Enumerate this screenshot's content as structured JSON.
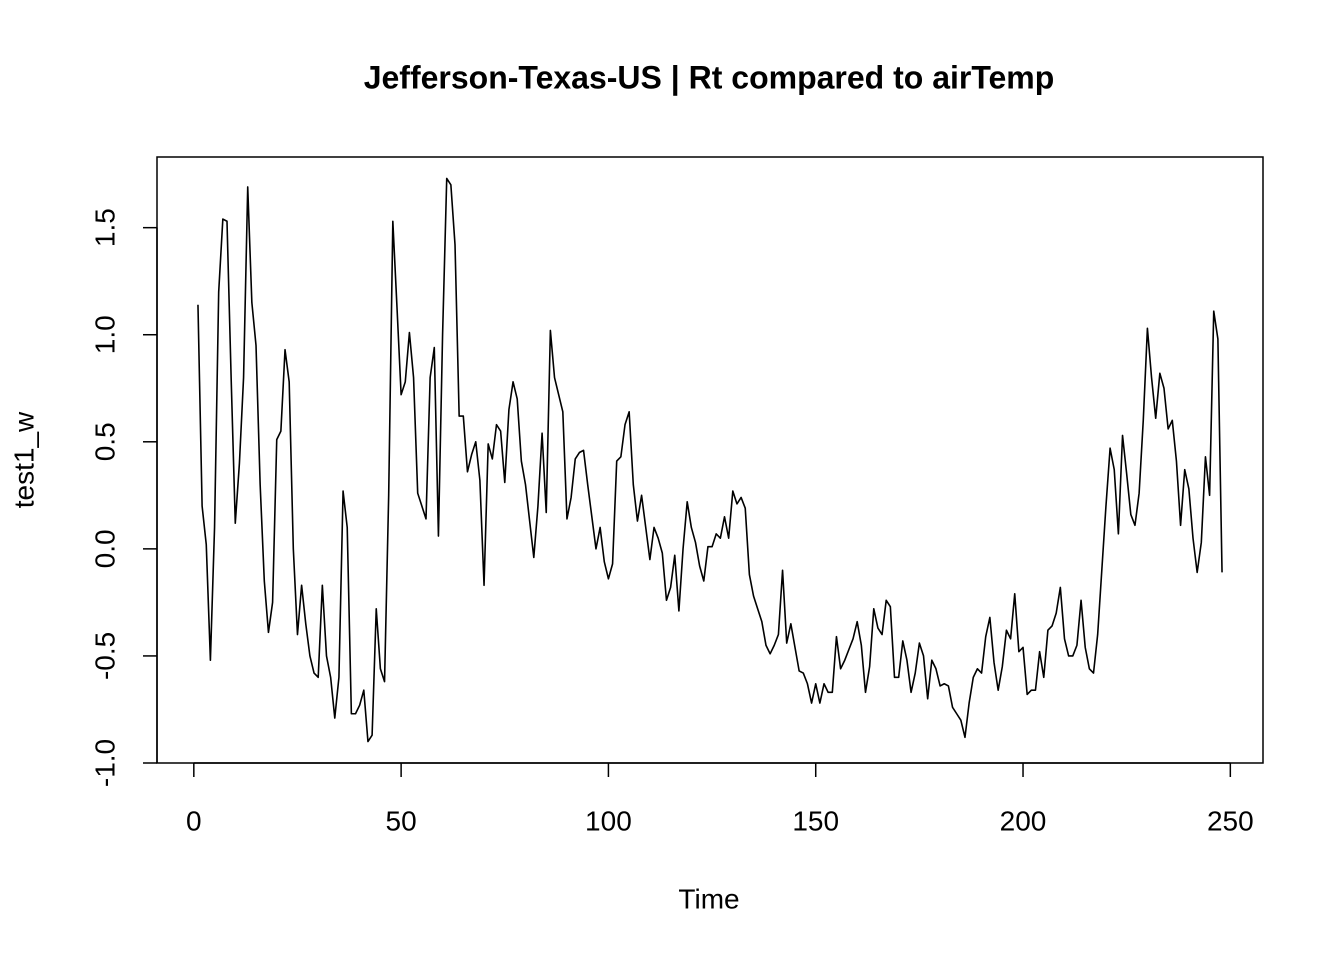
{
  "chart_data": {
    "type": "line",
    "title": "Jefferson-Texas-US | Rt compared to airTemp",
    "xlabel": "Time",
    "ylabel": "test1_w",
    "x": [
      1,
      2,
      3,
      4,
      5,
      6,
      7,
      8,
      9,
      10,
      11,
      12,
      13,
      14,
      15,
      16,
      17,
      18,
      19,
      20,
      21,
      22,
      23,
      24,
      25,
      26,
      27,
      28,
      29,
      30,
      31,
      32,
      33,
      34,
      35,
      36,
      37,
      38,
      39,
      40,
      41,
      42,
      43,
      44,
      45,
      46,
      47,
      48,
      49,
      50,
      51,
      52,
      53,
      54,
      55,
      56,
      57,
      58,
      59,
      60,
      61,
      62,
      63,
      64,
      65,
      66,
      67,
      68,
      69,
      70,
      71,
      72,
      73,
      74,
      75,
      76,
      77,
      78,
      79,
      80,
      81,
      82,
      83,
      84,
      85,
      86,
      87,
      88,
      89,
      90,
      91,
      92,
      93,
      94,
      95,
      96,
      97,
      98,
      99,
      100,
      101,
      102,
      103,
      104,
      105,
      106,
      107,
      108,
      109,
      110,
      111,
      112,
      113,
      114,
      115,
      116,
      117,
      118,
      119,
      120,
      121,
      122,
      123,
      124,
      125,
      126,
      127,
      128,
      129,
      130,
      131,
      132,
      133,
      134,
      135,
      136,
      137,
      138,
      139,
      140,
      141,
      142,
      143,
      144,
      145,
      146,
      147,
      148,
      149,
      150,
      151,
      152,
      153,
      154,
      155,
      156,
      157,
      158,
      159,
      160,
      161,
      162,
      163,
      164,
      165,
      166,
      167,
      168,
      169,
      170,
      171,
      172,
      173,
      174,
      175,
      176,
      177,
      178,
      179,
      180,
      181,
      182,
      183,
      184,
      185,
      186,
      187,
      188,
      189,
      190,
      191,
      192,
      193,
      194,
      195,
      196,
      197,
      198,
      199,
      200,
      201,
      202,
      203,
      204,
      205,
      206,
      207,
      208,
      209,
      210,
      211,
      212,
      213,
      214,
      215,
      216,
      217,
      218,
      219,
      220,
      221,
      222,
      223,
      224,
      225,
      226,
      227,
      228,
      229,
      230,
      231,
      232,
      233,
      234,
      235,
      236,
      237,
      238,
      239,
      240,
      241,
      242,
      243,
      244,
      245,
      246,
      247,
      248
    ],
    "values": [
      1.14,
      0.2,
      0.02,
      -0.52,
      0.1,
      1.2,
      1.54,
      1.53,
      0.8,
      0.12,
      0.4,
      0.8,
      1.69,
      1.15,
      0.95,
      0.3,
      -0.15,
      -0.39,
      -0.25,
      0.51,
      0.55,
      0.93,
      0.78,
      0.0,
      -0.4,
      -0.17,
      -0.35,
      -0.5,
      -0.58,
      -0.6,
      -0.17,
      -0.5,
      -0.6,
      -0.79,
      -0.6,
      0.27,
      0.1,
      -0.77,
      -0.77,
      -0.73,
      -0.66,
      -0.9,
      -0.87,
      -0.28,
      -0.56,
      -0.62,
      0.25,
      1.53,
      1.13,
      0.72,
      0.78,
      1.01,
      0.8,
      0.26,
      0.2,
      0.14,
      0.8,
      0.94,
      0.06,
      1.0,
      1.73,
      1.7,
      1.42,
      0.62,
      0.62,
      0.36,
      0.44,
      0.5,
      0.32,
      -0.17,
      0.49,
      0.42,
      0.58,
      0.55,
      0.31,
      0.65,
      0.78,
      0.7,
      0.41,
      0.3,
      0.13,
      -0.04,
      0.2,
      0.54,
      0.17,
      1.02,
      0.8,
      0.72,
      0.64,
      0.14,
      0.24,
      0.42,
      0.45,
      0.46,
      0.3,
      0.15,
      0.0,
      0.1,
      -0.06,
      -0.14,
      -0.07,
      0.41,
      0.43,
      0.58,
      0.64,
      0.3,
      0.13,
      0.25,
      0.1,
      -0.05,
      0.1,
      0.05,
      -0.02,
      -0.24,
      -0.18,
      -0.03,
      -0.29,
      0.0,
      0.22,
      0.1,
      0.03,
      -0.08,
      -0.15,
      0.01,
      0.01,
      0.07,
      0.05,
      0.15,
      0.05,
      0.27,
      0.21,
      0.24,
      0.19,
      -0.12,
      -0.22,
      -0.28,
      -0.34,
      -0.45,
      -0.49,
      -0.45,
      -0.4,
      -0.1,
      -0.44,
      -0.35,
      -0.46,
      -0.57,
      -0.58,
      -0.63,
      -0.72,
      -0.63,
      -0.72,
      -0.63,
      -0.67,
      -0.67,
      -0.41,
      -0.56,
      -0.52,
      -0.47,
      -0.42,
      -0.34,
      -0.45,
      -0.67,
      -0.55,
      -0.28,
      -0.37,
      -0.4,
      -0.24,
      -0.27,
      -0.6,
      -0.6,
      -0.43,
      -0.52,
      -0.67,
      -0.58,
      -0.44,
      -0.5,
      -0.7,
      -0.52,
      -0.56,
      -0.64,
      -0.63,
      -0.64,
      -0.74,
      -0.77,
      -0.8,
      -0.88,
      -0.72,
      -0.6,
      -0.56,
      -0.58,
      -0.41,
      -0.32,
      -0.53,
      -0.66,
      -0.55,
      -0.38,
      -0.42,
      -0.21,
      -0.48,
      -0.46,
      -0.68,
      -0.66,
      -0.66,
      -0.48,
      -0.6,
      -0.38,
      -0.36,
      -0.3,
      -0.18,
      -0.42,
      -0.5,
      -0.5,
      -0.45,
      -0.24,
      -0.46,
      -0.56,
      -0.58,
      -0.4,
      -0.1,
      0.2,
      0.47,
      0.37,
      0.07,
      0.53,
      0.35,
      0.16,
      0.11,
      0.26,
      0.6,
      1.03,
      0.8,
      0.61,
      0.82,
      0.75,
      0.56,
      0.6,
      0.41,
      0.11,
      0.37,
      0.28,
      0.05,
      -0.11,
      0.03,
      0.43,
      0.25,
      1.11,
      0.98,
      -0.11
    ],
    "color": "#000000",
    "xlim": [
      -8.88,
      257.88
    ],
    "ylim": [
      -1.0,
      1.83
    ],
    "xticks": [
      0,
      50,
      100,
      150,
      200,
      250
    ],
    "yticks": [
      {
        "value": -1,
        "label": "-1.0"
      },
      -0.5,
      {
        "value": 0,
        "label": "0.0"
      },
      0.5,
      {
        "value": 1,
        "label": "1.0"
      },
      1.5
    ]
  }
}
